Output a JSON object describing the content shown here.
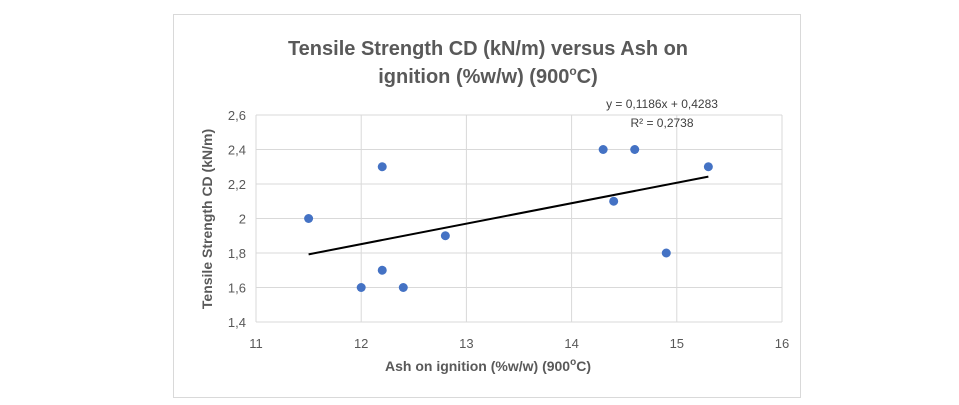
{
  "chart_data": {
    "type": "scatter",
    "title_line1": "Tensile Strength CD (kN/m) versus Ash on",
    "title_line2_main": "ignition (%w/w) (900",
    "title_line2_sup": "o",
    "title_line2_end": "C)",
    "xlabel_main": "Ash on ignition (%w/w) (900",
    "xlabel_sup": "o",
    "xlabel_end": "C)",
    "ylabel": "Tensile Strength CD (kN/m)",
    "xlim": [
      11,
      16
    ],
    "ylim": [
      1.4,
      2.6
    ],
    "xticks": [
      11,
      12,
      13,
      14,
      15,
      16
    ],
    "xtick_labels": [
      "11",
      "12",
      "13",
      "14",
      "15",
      "16"
    ],
    "yticks": [
      1.4,
      1.6,
      1.8,
      2.0,
      2.2,
      2.4,
      2.6
    ],
    "ytick_labels": [
      "1,4",
      "1,6",
      "1,8",
      "2",
      "2,2",
      "2,4",
      "2,6"
    ],
    "grid": true,
    "marker_color": "#4472c4",
    "trendline_color": "#000000",
    "points": [
      {
        "x": 11.5,
        "y": 2.0
      },
      {
        "x": 12.0,
        "y": 1.6
      },
      {
        "x": 12.2,
        "y": 2.3
      },
      {
        "x": 12.2,
        "y": 1.7
      },
      {
        "x": 12.4,
        "y": 1.6
      },
      {
        "x": 12.8,
        "y": 1.9
      },
      {
        "x": 14.3,
        "y": 2.4
      },
      {
        "x": 14.4,
        "y": 2.1
      },
      {
        "x": 14.6,
        "y": 2.4
      },
      {
        "x": 14.9,
        "y": 1.8
      },
      {
        "x": 15.3,
        "y": 2.3
      }
    ],
    "trendline": {
      "slope": 0.1186,
      "intercept": 0.4283,
      "x_start": 11.5,
      "x_end": 15.3,
      "equation": "y = 0,1186x + 0,4283",
      "r2": "R² = 0,2738"
    }
  }
}
